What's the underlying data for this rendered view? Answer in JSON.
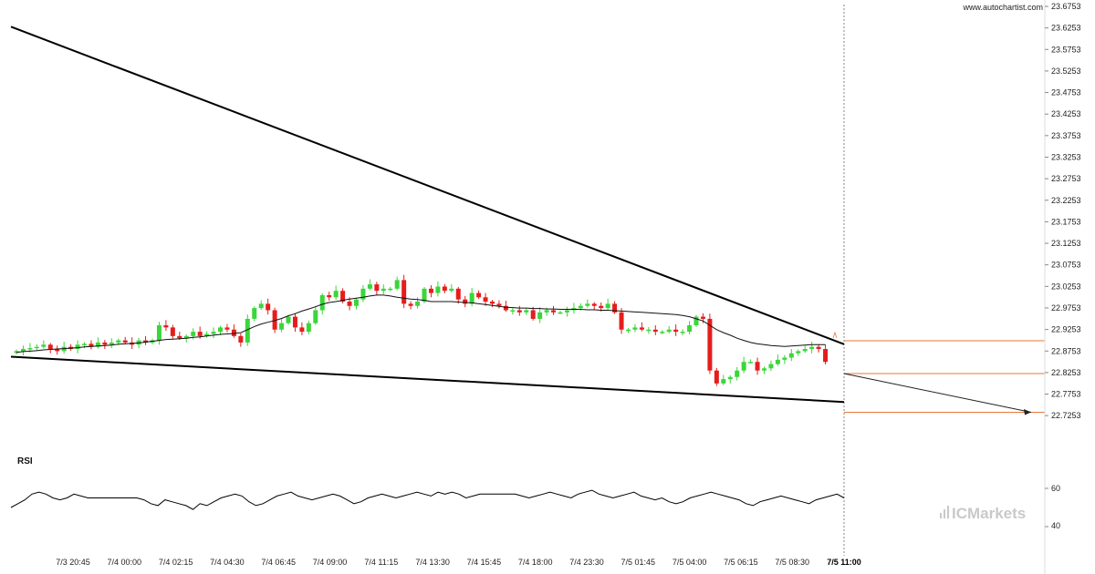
{
  "watermark": {
    "site": "www.autochartist.com",
    "brand": "ICMarkets"
  },
  "rsi": {
    "label": "RSI",
    "levels": [
      "60",
      "40"
    ]
  },
  "colors": {
    "up": "#3ad63a",
    "down": "#e51d1d",
    "line": "#000000",
    "target": "#e8773a",
    "axis": "#888888"
  },
  "chart_data": {
    "type": "candlestick",
    "price_axis": {
      "ylim": [
        22.7003,
        23.6753
      ],
      "ticks": [
        "23.6753",
        "23.6253",
        "23.5753",
        "23.5253",
        "23.4753",
        "23.4253",
        "23.3753",
        "23.3253",
        "23.2753",
        "23.2253",
        "23.1753",
        "23.1253",
        "23.0753",
        "23.0253",
        "22.9753",
        "22.9253",
        "22.8753",
        "22.8253",
        "22.7753",
        "22.7253"
      ]
    },
    "time_axis": {
      "ticks": [
        "7/3 20:45",
        "7/4 00:00",
        "7/4 02:15",
        "7/4 04:30",
        "7/4 06:45",
        "7/4 09:00",
        "7/4 11:15",
        "7/4 13:30",
        "7/4 15:45",
        "7/4 18:00",
        "7/4 23:30",
        "7/5 01:45",
        "7/5 04:00",
        "7/5 06:15",
        "7/5 08:30",
        "7/5 11:00"
      ],
      "current": "7/5 11:00"
    },
    "close_series": [
      22.875,
      22.88,
      22.882,
      22.885,
      22.89,
      22.88,
      22.875,
      22.885,
      22.88,
      22.89,
      22.892,
      22.885,
      22.895,
      22.89,
      22.895,
      22.9,
      22.895,
      22.89,
      22.9,
      22.895,
      22.9,
      22.935,
      22.93,
      22.91,
      22.905,
      22.91,
      22.92,
      22.91,
      22.915,
      22.92,
      22.93,
      22.925,
      22.91,
      22.895,
      22.95,
      22.975,
      22.985,
      22.97,
      22.925,
      22.94,
      22.955,
      22.93,
      22.92,
      22.94,
      22.97,
      23.005,
      23.0,
      23.015,
      22.99,
      22.98,
      22.995,
      23.02,
      23.03,
      23.015,
      23.02,
      23.02,
      23.04,
      22.985,
      22.98,
      22.99,
      23.02,
      23.01,
      23.025,
      23.015,
      23.02,
      22.995,
      22.985,
      23.01,
      23.0,
      22.99,
      22.985,
      22.98,
      22.97,
      22.97,
      22.965,
      22.97,
      22.95,
      22.965,
      22.97,
      22.965,
      22.965,
      22.97,
      22.975,
      22.98,
      22.985,
      22.98,
      22.975,
      22.985,
      22.965,
      22.925,
      22.925,
      22.93,
      22.925,
      22.925,
      22.92,
      22.92,
      22.925,
      22.92,
      22.92,
      22.935,
      22.955,
      22.95,
      22.83,
      22.8,
      22.81,
      22.815,
      22.83,
      22.85,
      22.85,
      22.83,
      22.835,
      22.845,
      22.855,
      22.86,
      22.87,
      22.875,
      22.88,
      22.885,
      22.88,
      22.85
    ],
    "sma_series": [
      22.872,
      22.874,
      22.875,
      22.876,
      22.878,
      22.879,
      22.88,
      22.881,
      22.882,
      22.883,
      22.885,
      22.886,
      22.887,
      22.888,
      22.889,
      22.891,
      22.892,
      22.893,
      22.894,
      22.896,
      22.898,
      22.9,
      22.902,
      22.903,
      22.904,
      22.905,
      22.907,
      22.908,
      22.91,
      22.912,
      22.914,
      22.915,
      22.916,
      22.918,
      22.925,
      22.932,
      22.938,
      22.942,
      22.946,
      22.951,
      22.957,
      22.962,
      22.968,
      22.973,
      22.978,
      22.984,
      22.988,
      22.99,
      22.993,
      22.996,
      22.998,
      23.0,
      23.003,
      23.005,
      23.005,
      23.003,
      23.0,
      22.998,
      22.996,
      22.995,
      22.993,
      22.99,
      22.99,
      22.99,
      22.99,
      22.989,
      22.988,
      22.987,
      22.985,
      22.983,
      22.981,
      22.979,
      22.977,
      22.976,
      22.975,
      22.975,
      22.974,
      22.974,
      22.973,
      22.973,
      22.972,
      22.972,
      22.972,
      22.972,
      22.971,
      22.971,
      22.97,
      22.97,
      22.969,
      22.968,
      22.967,
      22.966,
      22.965,
      22.964,
      22.963,
      22.962,
      22.961,
      22.96,
      22.958,
      22.955,
      22.95,
      22.945,
      22.935,
      22.925,
      22.918,
      22.912,
      22.905,
      22.9,
      22.895,
      22.892,
      22.89,
      22.888,
      22.887,
      22.886,
      22.887,
      22.888,
      22.889,
      22.89,
      22.89,
      22.89
    ],
    "pattern": {
      "name": "Falling Wedge",
      "upper_line": [
        [
          0,
          23.628
        ],
        [
          125,
          22.891
        ]
      ],
      "lower_line": [
        [
          0,
          22.862
        ],
        [
          125,
          22.757
        ]
      ]
    },
    "forecast": {
      "level_a": 22.899,
      "level_current": 22.823,
      "level_target": 22.733
    },
    "rsi_series": [
      50,
      52,
      54,
      57,
      58,
      57,
      55,
      54,
      55,
      57,
      56,
      55,
      55,
      55,
      55,
      55,
      55,
      55,
      55,
      54,
      52,
      51,
      54,
      53,
      52,
      51,
      49,
      52,
      51,
      53,
      55,
      56,
      57,
      56,
      53,
      51,
      52,
      54,
      56,
      57,
      58,
      56,
      55,
      54,
      55,
      56,
      57,
      56,
      54,
      52,
      53,
      55,
      56,
      57,
      56,
      55,
      56,
      57,
      58,
      57,
      56,
      58,
      57,
      58,
      57,
      55,
      56,
      57,
      57,
      57,
      57,
      57,
      57,
      56,
      55,
      56,
      57,
      58,
      57,
      56,
      55,
      57,
      58,
      59,
      57,
      56,
      55,
      56,
      57,
      58,
      56,
      55,
      54,
      55,
      53,
      52,
      53,
      55,
      56,
      57,
      58,
      57,
      56,
      55,
      54,
      52,
      51,
      53,
      54,
      55,
      56,
      55,
      54,
      53,
      52,
      54,
      55,
      56,
      57,
      55
    ]
  }
}
